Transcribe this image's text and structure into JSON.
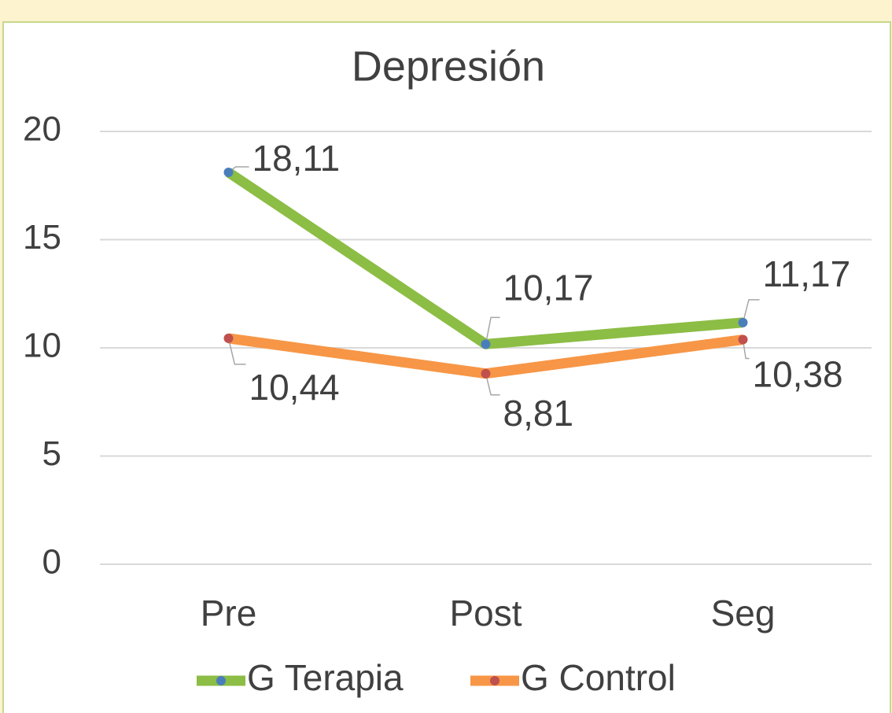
{
  "chart_data": {
    "type": "line",
    "title": "Depresión",
    "categories": [
      "Pre",
      "Post",
      "Seg"
    ],
    "series": [
      {
        "name": "G Terapia",
        "color": "#8cbd45",
        "marker_color": "#4a7ebb",
        "values": [
          18.11,
          10.17,
          11.17
        ],
        "value_labels": [
          "18,11",
          "10,17",
          "11,17"
        ]
      },
      {
        "name": "G Control",
        "color": "#f79646",
        "marker_color": "#c0504d",
        "values": [
          10.44,
          8.81,
          10.38
        ],
        "value_labels": [
          "10,44",
          "8,81",
          "10,38"
        ]
      }
    ],
    "ylim": [
      0,
      20
    ],
    "yticks": [
      0,
      5,
      10,
      15,
      20
    ],
    "grid": true,
    "legend": "bottom"
  }
}
